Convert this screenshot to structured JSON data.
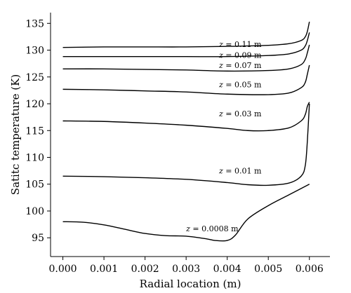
{
  "chart_data": {
    "type": "line",
    "xlabel": "Radial location (m)",
    "ylabel": "Satitc temperature (K)",
    "xlim": [
      -0.0003,
      0.0065
    ],
    "ylim": [
      91.5,
      137
    ],
    "x_ticks": [
      0.0,
      0.001,
      0.002,
      0.003,
      0.004,
      0.005,
      0.006
    ],
    "x_tick_labels": [
      "0.000",
      "0.001",
      "0.002",
      "0.003",
      "0.004",
      "0.005",
      "0.006"
    ],
    "y_ticks": [
      95,
      100,
      105,
      110,
      115,
      120,
      125,
      130,
      135
    ],
    "y_tick_labels": [
      "95",
      "100",
      "105",
      "110",
      "115",
      "120",
      "125",
      "130",
      "135"
    ],
    "grid": false,
    "series": [
      {
        "name": "z = 0.11 m",
        "label_var": "z",
        "label_rest": " = 0.11 m",
        "label_pos": [
          0.0038,
          131.1
        ],
        "x": [
          0.0,
          0.001,
          0.002,
          0.003,
          0.004,
          0.005,
          0.0055,
          0.0058,
          0.0059,
          0.00595,
          0.006
        ],
        "y": [
          130.5,
          130.6,
          130.6,
          130.6,
          130.7,
          130.9,
          131.2,
          131.8,
          132.5,
          133.5,
          135.3
        ]
      },
      {
        "name": "z = 0.09 m",
        "label_var": "z",
        "label_rest": " = 0.09 m",
        "label_pos": [
          0.0038,
          129.1
        ],
        "x": [
          0.0,
          0.001,
          0.002,
          0.003,
          0.004,
          0.005,
          0.0055,
          0.0058,
          0.0059,
          0.00595,
          0.006
        ],
        "y": [
          128.8,
          128.8,
          128.8,
          128.8,
          128.8,
          129.0,
          129.3,
          130.0,
          130.8,
          131.8,
          133.3
        ]
      },
      {
        "name": "z = 0.07 m",
        "label_var": "z",
        "label_rest": " = 0.07 m",
        "label_pos": [
          0.0038,
          127.2
        ],
        "x": [
          0.0,
          0.001,
          0.002,
          0.003,
          0.004,
          0.005,
          0.0055,
          0.0058,
          0.0059,
          0.00595,
          0.006
        ],
        "y": [
          126.5,
          126.5,
          126.4,
          126.3,
          126.1,
          126.2,
          126.5,
          127.3,
          128.3,
          129.5,
          131.0
        ]
      },
      {
        "name": "z = 0.05 m",
        "label_var": "z",
        "label_rest": " = 0.05 m",
        "label_pos": [
          0.0038,
          123.6
        ],
        "x": [
          0.0,
          0.001,
          0.002,
          0.003,
          0.004,
          0.005,
          0.0055,
          0.0058,
          0.0059,
          0.00595,
          0.006
        ],
        "y": [
          122.7,
          122.6,
          122.4,
          122.2,
          121.8,
          121.7,
          122.0,
          123.0,
          124.0,
          125.5,
          127.2
        ]
      },
      {
        "name": "z = 0.03 m",
        "label_var": "z",
        "label_rest": " = 0.03 m",
        "label_pos": [
          0.0038,
          118.2
        ],
        "x": [
          0.0,
          0.001,
          0.002,
          0.003,
          0.004,
          0.0045,
          0.005,
          0.0055,
          0.0058,
          0.0059,
          0.00595,
          0.006
        ],
        "y": [
          116.8,
          116.7,
          116.4,
          116.0,
          115.4,
          115.0,
          115.0,
          115.5,
          116.8,
          118.0,
          119.5,
          120.3
        ]
      },
      {
        "name": "z = 0.01 m",
        "label_var": "z",
        "label_rest": " = 0.01 m",
        "label_pos": [
          0.0038,
          107.5
        ],
        "x": [
          0.0,
          0.001,
          0.002,
          0.003,
          0.004,
          0.0045,
          0.005,
          0.0055,
          0.0058,
          0.0059,
          0.00595,
          0.006
        ],
        "y": [
          106.5,
          106.4,
          106.2,
          105.9,
          105.3,
          104.9,
          104.8,
          105.2,
          106.5,
          108.5,
          113.0,
          120.0
        ]
      },
      {
        "name": "z = 0.0008 m",
        "label_var": "z",
        "label_rest": " = 0.0008 m",
        "label_pos": [
          0.003,
          96.7
        ],
        "x": [
          0.0,
          0.0005,
          0.001,
          0.0015,
          0.002,
          0.0025,
          0.003,
          0.0035,
          0.0037,
          0.004,
          0.0042,
          0.0045,
          0.005,
          0.0055,
          0.006
        ],
        "y": [
          98.0,
          97.9,
          97.4,
          96.6,
          95.8,
          95.4,
          95.3,
          94.8,
          94.5,
          94.5,
          95.5,
          98.5,
          101.0,
          103.0,
          105.0
        ]
      }
    ]
  }
}
